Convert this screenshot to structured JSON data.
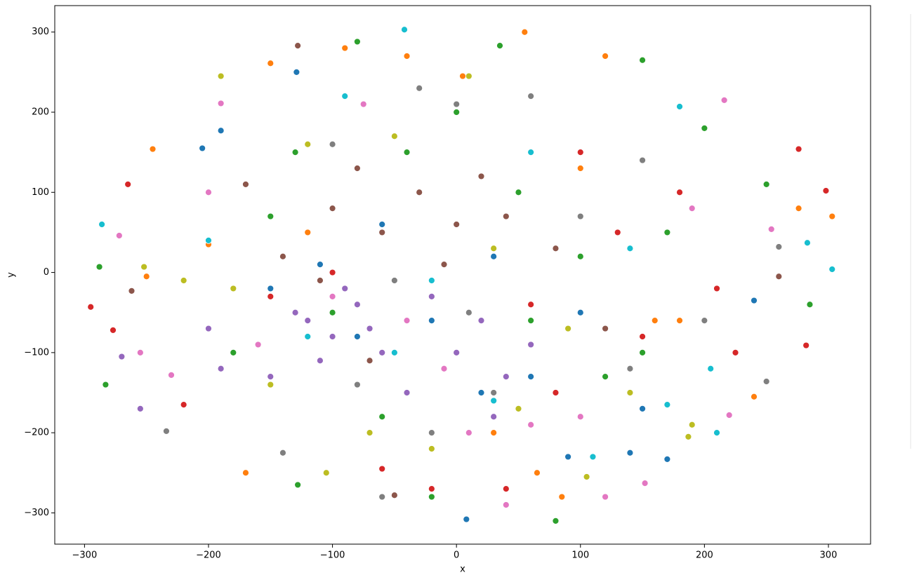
{
  "chart_data": {
    "type": "scatter",
    "xlabel": "x",
    "ylabel": "y",
    "xlim": [
      -324,
      334
    ],
    "ylim": [
      -339,
      333
    ],
    "xticks": [
      {
        "value": -300,
        "label": "−300"
      },
      {
        "value": -200,
        "label": "−200"
      },
      {
        "value": -100,
        "label": "−100"
      },
      0,
      100,
      200,
      300
    ],
    "yticks": [
      {
        "value": -300,
        "label": "−300"
      },
      {
        "value": -200,
        "label": "−200"
      },
      {
        "value": -100,
        "label": "−100"
      },
      0,
      100,
      200,
      300
    ],
    "grid": false,
    "series": [
      {
        "color": "#1f77b4",
        "x": [
          -129,
          -205,
          -190,
          -80,
          -20,
          30,
          60,
          100,
          150,
          205,
          -42,
          8,
          140,
          170,
          -110,
          20,
          -60,
          90,
          -150,
          240
        ],
        "y": [
          250,
          155,
          177,
          -80,
          -60,
          20,
          -130,
          -50,
          -170,
          -120,
          303,
          -308,
          -225,
          -233,
          10,
          -150,
          60,
          -230,
          -20,
          -35
        ]
      },
      {
        "color": "#ff7f0e",
        "x": [
          -250,
          -245,
          -150,
          -90,
          55,
          120,
          276,
          303,
          -170,
          65,
          85,
          240,
          -40,
          5,
          160,
          -120,
          30,
          180,
          100,
          -200
        ],
        "y": [
          -5,
          154,
          261,
          280,
          300,
          270,
          80,
          70,
          -250,
          -250,
          -280,
          -155,
          270,
          245,
          -60,
          50,
          -200,
          -60,
          130,
          35
        ]
      },
      {
        "color": "#d62728",
        "x": [
          -295,
          -277,
          -265,
          -220,
          282,
          298,
          276,
          -60,
          -20,
          40,
          100,
          150,
          -100,
          180,
          80,
          -150,
          130,
          60,
          210,
          225
        ],
        "y": [
          -43,
          -72,
          110,
          -165,
          -91,
          102,
          154,
          -245,
          -270,
          -270,
          150,
          -80,
          0,
          100,
          -150,
          -30,
          50,
          -40,
          -20,
          -100
        ]
      },
      {
        "color": "#9467bd",
        "x": [
          -270,
          -255,
          -120,
          -100,
          -80,
          -60,
          -150,
          -200,
          -90,
          -40,
          0,
          30,
          -110,
          -130,
          40,
          -70,
          20,
          -190,
          60,
          -20
        ],
        "y": [
          -105,
          -170,
          -60,
          -80,
          -40,
          -100,
          -130,
          -70,
          -20,
          -150,
          -100,
          -180,
          -110,
          -50,
          -130,
          -70,
          -60,
          -120,
          -90,
          -30
        ]
      },
      {
        "color": "#8c564b",
        "x": [
          -262,
          -128,
          -50,
          -60,
          -100,
          -30,
          0,
          -80,
          -140,
          20,
          40,
          -10,
          -160,
          -70,
          -110,
          260,
          80,
          -40,
          120,
          -170
        ],
        "y": [
          -23,
          283,
          -278,
          50,
          80,
          100,
          60,
          130,
          20,
          120,
          70,
          10,
          -90,
          -110,
          -10,
          -5,
          30,
          -60,
          -70,
          110
        ]
      },
      {
        "color": "#e377c2",
        "x": [
          -272,
          -255,
          -190,
          -230,
          152,
          216,
          -75,
          10,
          40,
          -160,
          120,
          220,
          254,
          -100,
          60,
          -10,
          -40,
          100,
          190,
          -200
        ],
        "y": [
          46,
          -100,
          211,
          -128,
          -263,
          215,
          210,
          -200,
          -290,
          -90,
          -280,
          -178,
          54,
          -30,
          -190,
          -120,
          -60,
          -180,
          80,
          100
        ]
      },
      {
        "color": "#7f7f7f",
        "x": [
          -234,
          -60,
          -30,
          0,
          -20,
          30,
          260,
          250,
          -140,
          100,
          150,
          -100,
          60,
          200,
          -50,
          -80,
          10,
          140
        ],
        "y": [
          -198,
          -280,
          230,
          210,
          -200,
          -150,
          32,
          -136,
          -225,
          70,
          140,
          160,
          220,
          -60,
          -10,
          -140,
          -50,
          -120
        ]
      },
      {
        "color": "#bcbd22",
        "x": [
          -252,
          -190,
          -105,
          -120,
          10,
          105,
          190,
          187,
          -220,
          -150,
          -20,
          50,
          140,
          -70,
          30,
          -180,
          -50,
          90
        ],
        "y": [
          7,
          245,
          -250,
          160,
          245,
          -255,
          -190,
          -205,
          -10,
          -140,
          -220,
          -170,
          -150,
          -200,
          30,
          -20,
          170,
          -70
        ]
      },
      {
        "color": "#17becf",
        "x": [
          -286,
          -42,
          -90,
          180,
          283,
          303,
          205,
          210,
          -200,
          170,
          140,
          -20,
          60,
          110,
          -50,
          -120,
          30
        ],
        "y": [
          60,
          303,
          220,
          207,
          37,
          4,
          -120,
          -200,
          40,
          -165,
          30,
          -10,
          150,
          -230,
          -100,
          -80,
          -160
        ]
      },
      {
        "color": "#2ca02c",
        "x": [
          -288,
          -283,
          -128,
          -80,
          35,
          80,
          150,
          285,
          -130,
          -60,
          0,
          50,
          100,
          150,
          -100,
          -150,
          200,
          -20,
          120,
          -180,
          60,
          -40,
          170,
          250
        ],
        "y": [
          7,
          -140,
          -265,
          288,
          283,
          -310,
          265,
          -40,
          150,
          -180,
          200,
          100,
          20,
          -100,
          -50,
          70,
          180,
          -280,
          -130,
          -100,
          -60,
          150,
          50,
          110
        ]
      }
    ]
  }
}
